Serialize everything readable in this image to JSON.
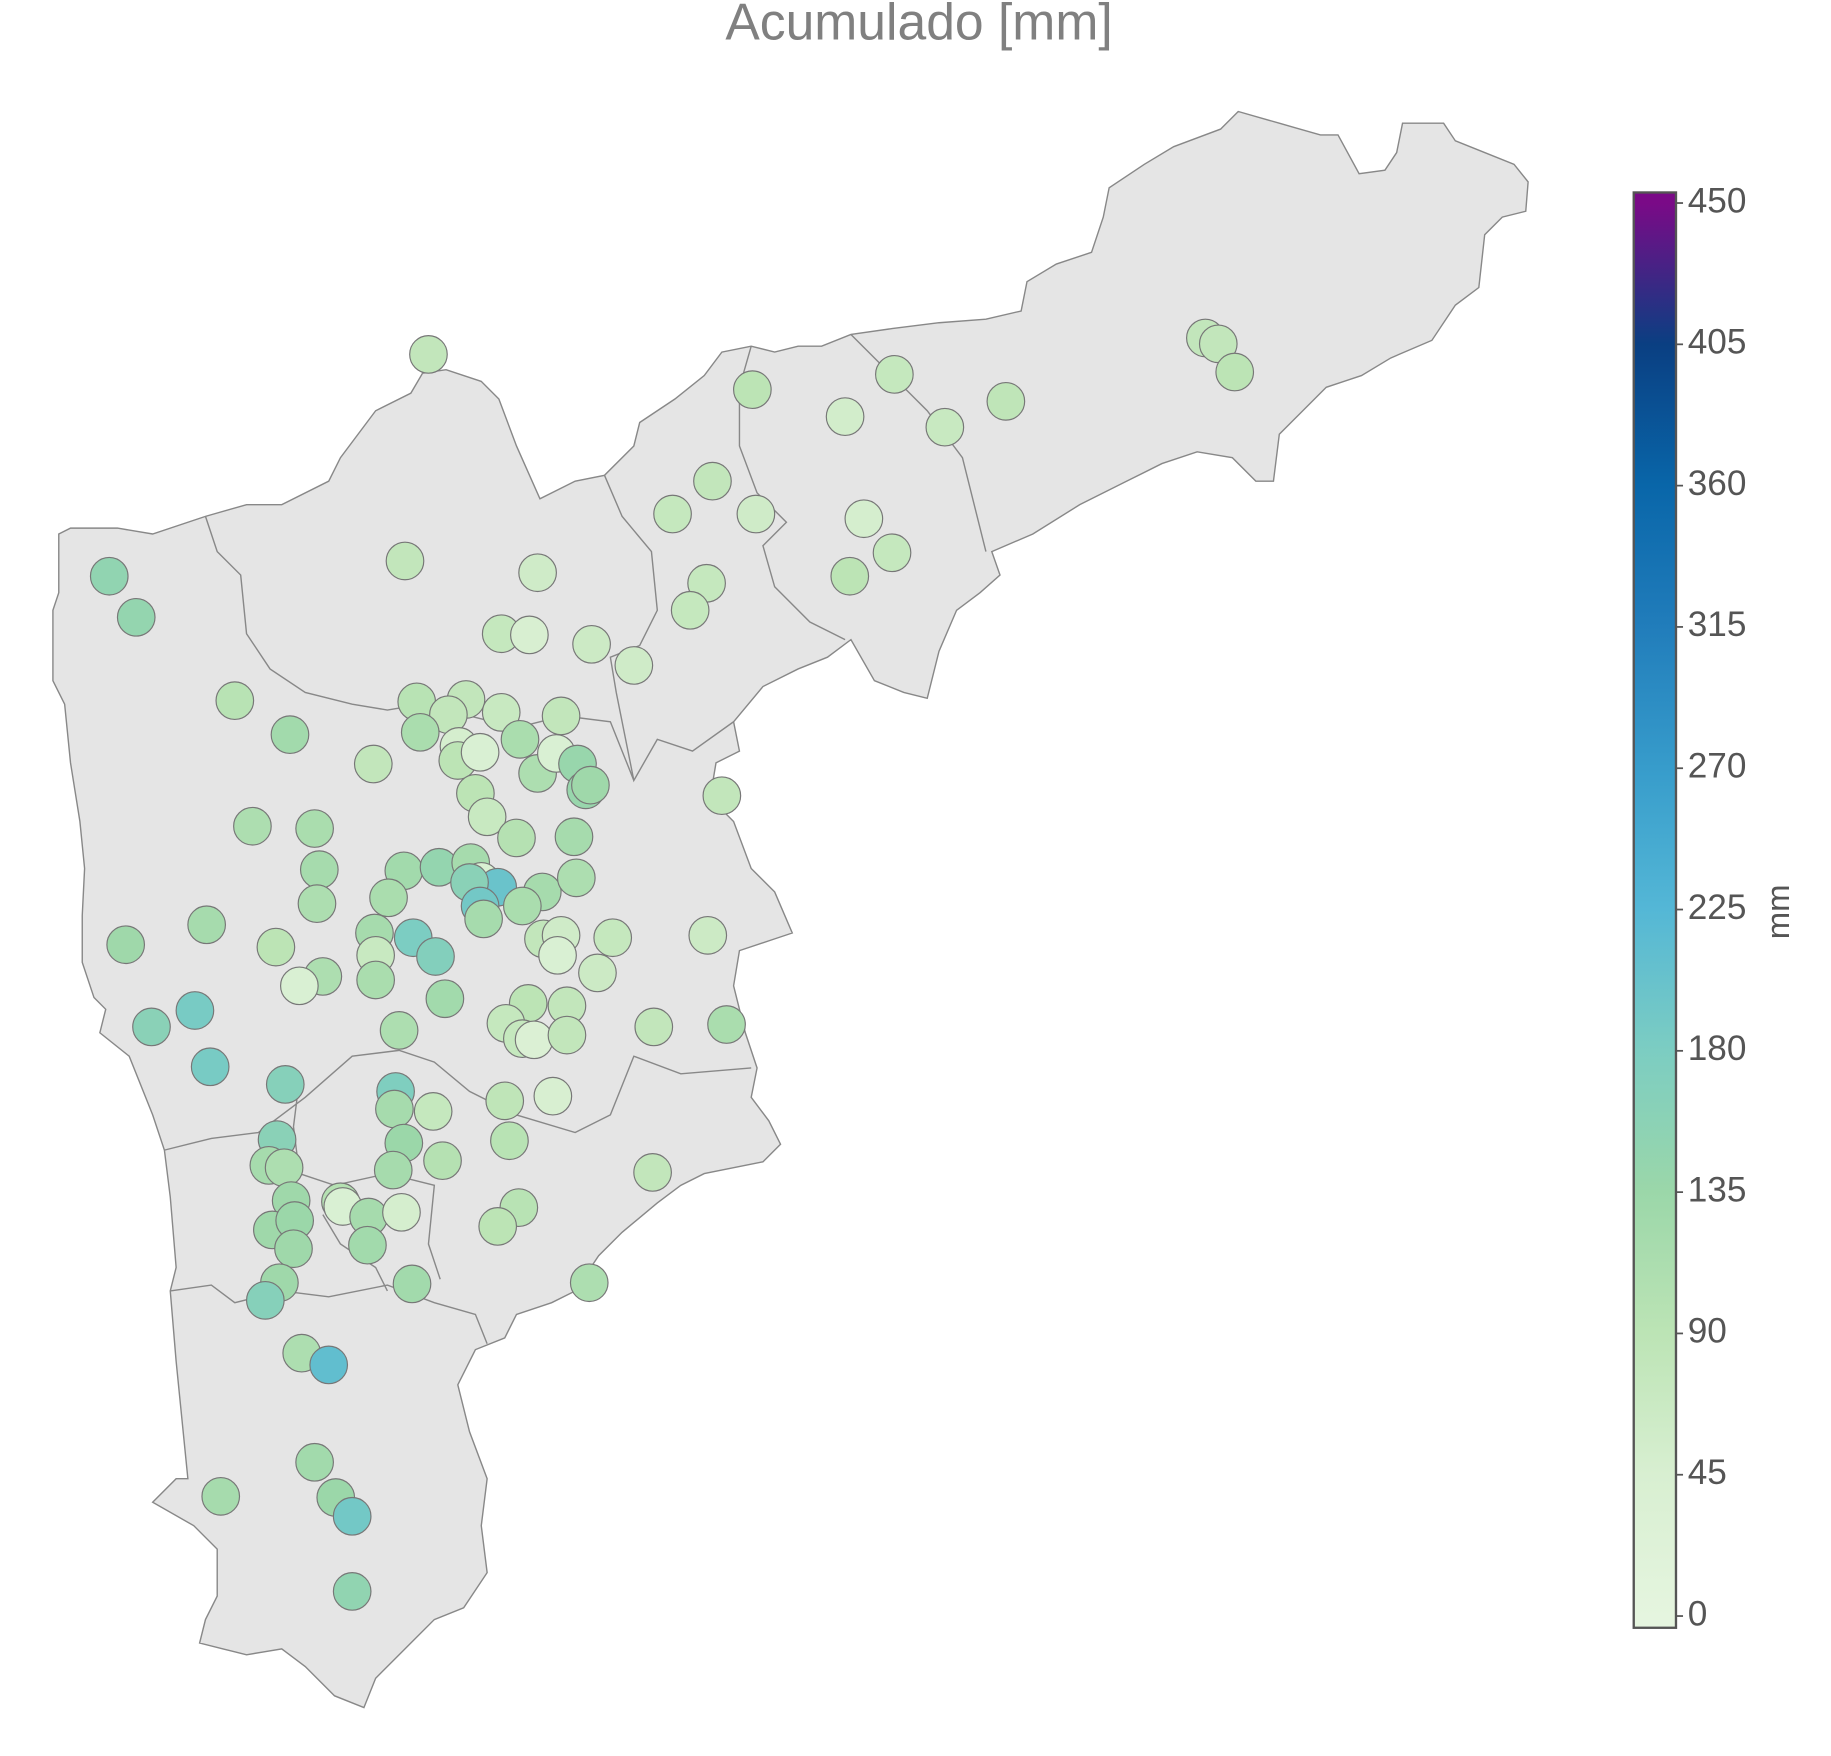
{
  "chart_data": {
    "type": "map",
    "title": "Acumulado [mm]",
    "colorbar": {
      "label": "mm",
      "lim": [
        0,
        450
      ],
      "ticks": [
        0,
        45,
        90,
        135,
        180,
        225,
        270,
        315,
        360,
        405,
        450
      ],
      "colors": [
        "#e5f5df",
        "#d8efd1",
        "#bce4b5",
        "#9bd7a9",
        "#7ccdc2",
        "#54b7d6",
        "#379ccb",
        "#217dbb",
        "#0966a9",
        "#0a3f82",
        "#7a0a87"
      ]
    },
    "values": [
      80,
      80,
      80,
      90,
      90,
      75,
      85,
      55,
      70,
      80,
      75,
      60,
      50,
      75,
      90,
      75,
      75,
      80,
      60,
      75,
      45,
      65,
      60,
      150,
      145,
      95,
      125,
      80,
      95,
      80,
      80,
      70,
      80,
      115,
      50,
      90,
      40,
      115,
      110,
      40,
      140,
      140,
      130,
      80,
      90,
      70,
      110,
      115,
      100,
      120,
      120,
      125,
      145,
      120,
      40,
      200,
      160,
      120,
      110,
      110,
      115,
      190,
      115,
      120,
      120,
      130,
      90,
      120,
      180,
      170,
      80,
      60,
      75,
      65,
      40,
      110,
      40,
      70,
      115,
      65,
      125,
      90,
      80,
      185,
      160,
      110,
      75,
      75,
      35,
      80,
      80,
      115,
      185,
      165,
      175,
      45,
      85,
      120,
      75,
      160,
      135,
      95,
      120,
      110,
      120,
      100,
      80,
      130,
      100,
      40,
      120,
      50,
      95,
      130,
      135,
      90,
      130,
      125,
      130,
      125,
      110,
      165,
      110,
      210,
      125,
      120,
      135,
      190,
      150
    ]
  }
}
